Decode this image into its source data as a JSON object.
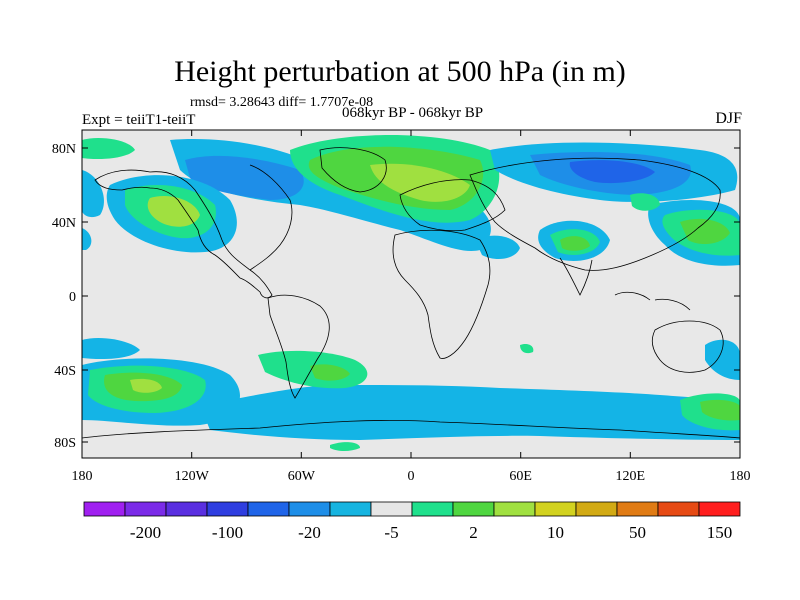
{
  "title": "Height perturbation at 500 hPa (in m)",
  "stats": "rmsd= 3.28643 diff= 1.7707e-08",
  "period": "068kyr BP - 068kyr BP",
  "expt": "Expt = teiiT1-teiiT",
  "season": "DJF",
  "lat_labels": [
    "80N",
    "40N",
    "0",
    "40S",
    "80S"
  ],
  "lon_labels": [
    "180",
    "120W",
    "60W",
    "0",
    "60E",
    "120E",
    "180"
  ],
  "colorbar": {
    "colors": [
      "#a020f0",
      "#7b2be8",
      "#5a2fe0",
      "#2f3ee0",
      "#1f64e8",
      "#1e8ee8",
      "#16b4e0",
      "#e6e6e6",
      "#1fe08c",
      "#4fd640",
      "#a0e040",
      "#d2d21f",
      "#d2aa14",
      "#e07b14",
      "#e64a14",
      "#ff1e1e"
    ],
    "labels": [
      "-200",
      "-100",
      "-20",
      "-5",
      "2",
      "10",
      "50",
      "150"
    ]
  },
  "contour_colors": {
    "neutral": "#e8e8e8",
    "lightblue": "#14b4e6",
    "blue": "#1e8ee8",
    "darkblue": "#1f64e8",
    "teal": "#1fe08c",
    "green": "#4fd640",
    "yellowgreen": "#a0e040",
    "yellow": "#e0e01e"
  }
}
